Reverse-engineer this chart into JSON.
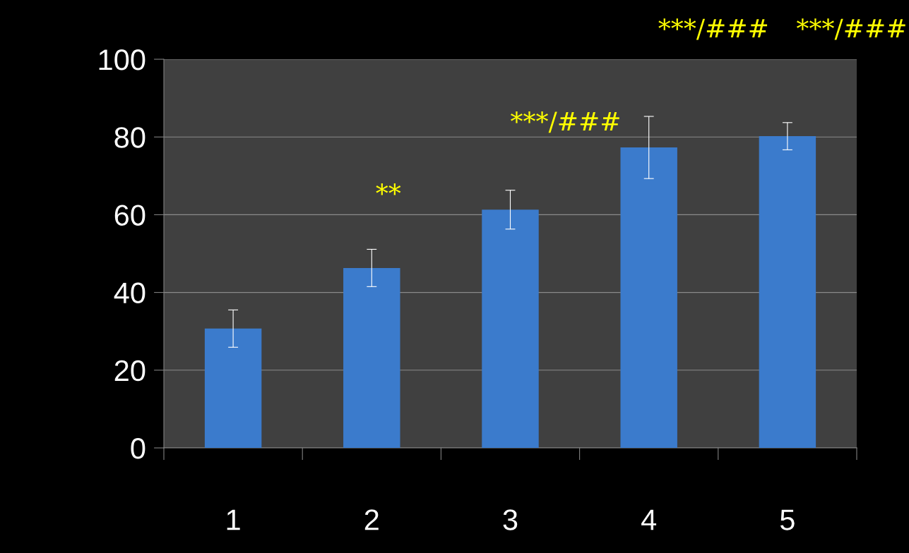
{
  "chart_data": {
    "type": "bar",
    "categories": [
      "1",
      "2",
      "3",
      "4",
      "5"
    ],
    "values": [
      30.7,
      46.3,
      61.3,
      77.3,
      80.2
    ],
    "errors": [
      4.8,
      4.8,
      5,
      8,
      3.5
    ],
    "color": "#3b7bcc",
    "ylim": [
      0,
      100
    ],
    "yticks": [
      0,
      20,
      40,
      60,
      80,
      100
    ],
    "grid": "y",
    "annotations": [
      "**",
      "***/###",
      "***/###",
      "***/###"
    ]
  }
}
